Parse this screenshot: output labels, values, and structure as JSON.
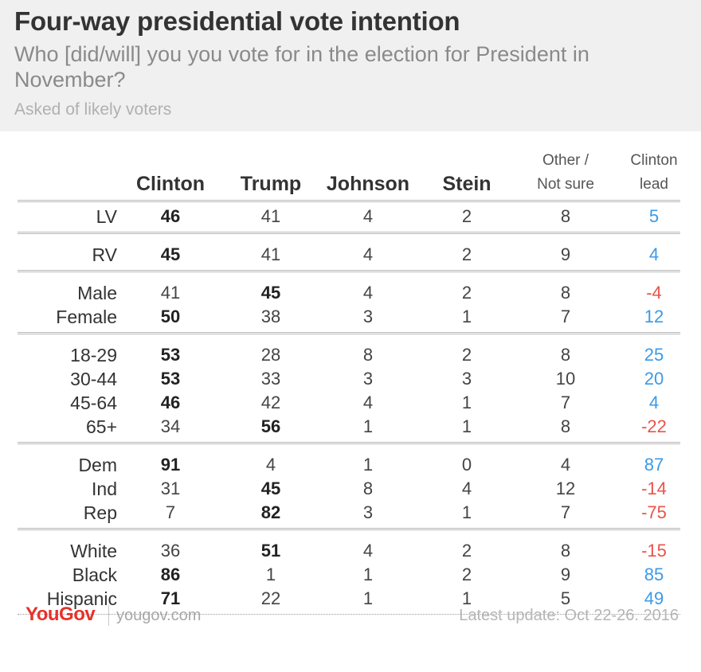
{
  "header": {
    "title": "Four-way presidential vote intention",
    "subtitle": "Who [did/will] you you vote for in the election for President in November?",
    "note": "Asked of likely voters"
  },
  "columns": {
    "clinton": "Clinton",
    "trump": "Trump",
    "johnson": "Johnson",
    "stein": "Stein",
    "other_line1": "Other /",
    "other_line2": "Not sure",
    "lead_line1": "Clinton",
    "lead_line2": "lead"
  },
  "colors": {
    "positive": "#3b9ae8",
    "negative": "#e8534a",
    "brand": "#e8312a"
  },
  "chart_data": {
    "type": "table",
    "title": "Four-way presidential vote intention",
    "columns": [
      "Clinton",
      "Trump",
      "Johnson",
      "Stein",
      "Other / Not sure",
      "Clinton lead"
    ],
    "groups": [
      [
        {
          "label": "LV",
          "values": [
            "46",
            "41",
            "4",
            "2",
            "8",
            "5"
          ],
          "bold": 0
        }
      ],
      [
        {
          "label": "RV",
          "values": [
            "45",
            "41",
            "4",
            "2",
            "9",
            "4"
          ],
          "bold": 0
        }
      ],
      [
        {
          "label": "Male",
          "values": [
            "41",
            "45",
            "4",
            "2",
            "8",
            "-4"
          ],
          "bold": 1
        },
        {
          "label": "Female",
          "values": [
            "50",
            "38",
            "3",
            "1",
            "7",
            "12"
          ],
          "bold": 0
        }
      ],
      [
        {
          "label": "18-29",
          "values": [
            "53",
            "28",
            "8",
            "2",
            "8",
            "25"
          ],
          "bold": 0
        },
        {
          "label": "30-44",
          "values": [
            "53",
            "33",
            "3",
            "3",
            "10",
            "20"
          ],
          "bold": 0
        },
        {
          "label": "45-64",
          "values": [
            "46",
            "42",
            "4",
            "1",
            "7",
            "4"
          ],
          "bold": 0
        },
        {
          "label": "65+",
          "values": [
            "34",
            "56",
            "1",
            "1",
            "8",
            "-22"
          ],
          "bold": 1
        }
      ],
      [
        {
          "label": "Dem",
          "values": [
            "91",
            "4",
            "1",
            "0",
            "4",
            "87"
          ],
          "bold": 0
        },
        {
          "label": "Ind",
          "values": [
            "31",
            "45",
            "8",
            "4",
            "12",
            "-14"
          ],
          "bold": 1
        },
        {
          "label": "Rep",
          "values": [
            "7",
            "82",
            "3",
            "1",
            "7",
            "-75"
          ],
          "bold": 1
        }
      ],
      [
        {
          "label": "White",
          "values": [
            "36",
            "51",
            "4",
            "2",
            "8",
            "-15"
          ],
          "bold": 1
        },
        {
          "label": "Black",
          "values": [
            "86",
            "1",
            "1",
            "2",
            "9",
            "85"
          ],
          "bold": 0
        },
        {
          "label": "Hispanic",
          "values": [
            "71",
            "22",
            "1",
            "1",
            "5",
            "49"
          ],
          "bold": 0
        }
      ]
    ]
  },
  "footer": {
    "logo": "YouGov",
    "site": "yougov.com",
    "update": "Latest update: Oct 22-26. 2016"
  }
}
